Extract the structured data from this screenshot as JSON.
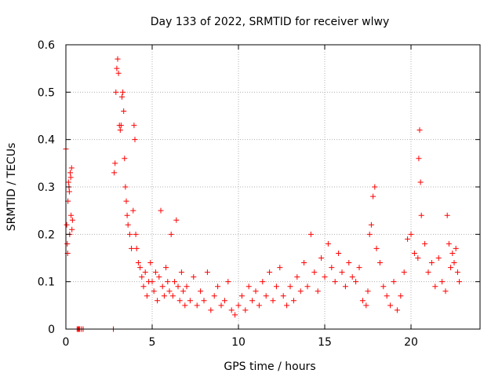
{
  "chart_data": {
    "type": "scatter",
    "title": "Day 133 of 2022, SRMTID for receiver wlwy",
    "xlabel": "GPS time / hours",
    "ylabel": "SRMTID / TECUs",
    "xlim": [
      0,
      24
    ],
    "ylim": [
      0,
      0.6
    ],
    "xticks": [
      "0",
      "5",
      "10",
      "15",
      "20"
    ],
    "yticks": [
      "0",
      "0.1",
      "0.2",
      "0.3",
      "0.4",
      "0.5",
      "0.6"
    ],
    "grid": true,
    "marker": "+",
    "series": [
      {
        "name": "SRMTID",
        "color": "#ff0000",
        "points": [
          [
            0.0,
            0.38
          ],
          [
            0.05,
            0.22
          ],
          [
            0.08,
            0.18
          ],
          [
            0.1,
            0.16
          ],
          [
            0.12,
            0.27
          ],
          [
            0.15,
            0.31
          ],
          [
            0.18,
            0.3
          ],
          [
            0.2,
            0.29
          ],
          [
            0.22,
            0.2
          ],
          [
            0.25,
            0.33
          ],
          [
            0.28,
            0.32
          ],
          [
            0.3,
            0.24
          ],
          [
            0.33,
            0.34
          ],
          [
            0.35,
            0.21
          ],
          [
            0.38,
            0.23
          ],
          [
            0.65,
            0.0
          ],
          [
            0.7,
            0.0
          ],
          [
            0.75,
            0.0
          ],
          [
            0.8,
            0.0
          ],
          [
            0.9,
            0.0
          ],
          [
            1.0,
            0.0
          ],
          [
            2.75,
            0.0
          ],
          [
            2.8,
            0.33
          ],
          [
            2.85,
            0.35
          ],
          [
            2.9,
            0.5
          ],
          [
            2.95,
            0.55
          ],
          [
            3.0,
            0.57
          ],
          [
            3.05,
            0.54
          ],
          [
            3.1,
            0.43
          ],
          [
            3.15,
            0.42
          ],
          [
            3.2,
            0.43
          ],
          [
            3.25,
            0.49
          ],
          [
            3.3,
            0.5
          ],
          [
            3.35,
            0.46
          ],
          [
            3.4,
            0.36
          ],
          [
            3.45,
            0.3
          ],
          [
            3.5,
            0.27
          ],
          [
            3.55,
            0.24
          ],
          [
            3.6,
            0.22
          ],
          [
            3.7,
            0.2
          ],
          [
            3.8,
            0.17
          ],
          [
            3.9,
            0.25
          ],
          [
            3.95,
            0.43
          ],
          [
            4.0,
            0.4
          ],
          [
            4.05,
            0.2
          ],
          [
            4.1,
            0.17
          ],
          [
            4.2,
            0.14
          ],
          [
            4.3,
            0.13
          ],
          [
            4.4,
            0.11
          ],
          [
            4.5,
            0.09
          ],
          [
            4.6,
            0.12
          ],
          [
            4.7,
            0.07
          ],
          [
            4.8,
            0.1
          ],
          [
            4.9,
            0.14
          ],
          [
            5.0,
            0.1
          ],
          [
            5.1,
            0.08
          ],
          [
            5.2,
            0.12
          ],
          [
            5.3,
            0.06
          ],
          [
            5.4,
            0.11
          ],
          [
            5.5,
            0.25
          ],
          [
            5.6,
            0.09
          ],
          [
            5.7,
            0.07
          ],
          [
            5.8,
            0.13
          ],
          [
            5.9,
            0.1
          ],
          [
            6.0,
            0.08
          ],
          [
            6.1,
            0.2
          ],
          [
            6.2,
            0.07
          ],
          [
            6.3,
            0.1
          ],
          [
            6.4,
            0.23
          ],
          [
            6.5,
            0.09
          ],
          [
            6.6,
            0.06
          ],
          [
            6.7,
            0.12
          ],
          [
            6.8,
            0.08
          ],
          [
            6.9,
            0.05
          ],
          [
            7.0,
            0.09
          ],
          [
            7.2,
            0.06
          ],
          [
            7.4,
            0.11
          ],
          [
            7.6,
            0.05
          ],
          [
            7.8,
            0.08
          ],
          [
            8.0,
            0.06
          ],
          [
            8.2,
            0.12
          ],
          [
            8.4,
            0.04
          ],
          [
            8.6,
            0.07
          ],
          [
            8.8,
            0.09
          ],
          [
            9.0,
            0.05
          ],
          [
            9.2,
            0.06
          ],
          [
            9.4,
            0.1
          ],
          [
            9.6,
            0.04
          ],
          [
            9.8,
            0.03
          ],
          [
            10.0,
            0.05
          ],
          [
            10.2,
            0.07
          ],
          [
            10.4,
            0.04
          ],
          [
            10.6,
            0.09
          ],
          [
            10.8,
            0.06
          ],
          [
            11.0,
            0.08
          ],
          [
            11.2,
            0.05
          ],
          [
            11.4,
            0.1
          ],
          [
            11.6,
            0.07
          ],
          [
            11.8,
            0.12
          ],
          [
            12.0,
            0.06
          ],
          [
            12.2,
            0.09
          ],
          [
            12.4,
            0.13
          ],
          [
            12.6,
            0.07
          ],
          [
            12.8,
            0.05
          ],
          [
            13.0,
            0.09
          ],
          [
            13.2,
            0.06
          ],
          [
            13.4,
            0.11
          ],
          [
            13.6,
            0.08
          ],
          [
            13.8,
            0.14
          ],
          [
            14.0,
            0.09
          ],
          [
            14.2,
            0.2
          ],
          [
            14.4,
            0.12
          ],
          [
            14.6,
            0.08
          ],
          [
            14.8,
            0.15
          ],
          [
            15.0,
            0.11
          ],
          [
            15.2,
            0.18
          ],
          [
            15.4,
            0.13
          ],
          [
            15.6,
            0.1
          ],
          [
            15.8,
            0.16
          ],
          [
            16.0,
            0.12
          ],
          [
            16.2,
            0.09
          ],
          [
            16.4,
            0.14
          ],
          [
            16.6,
            0.11
          ],
          [
            16.8,
            0.1
          ],
          [
            17.0,
            0.13
          ],
          [
            17.2,
            0.06
          ],
          [
            17.4,
            0.05
          ],
          [
            17.5,
            0.08
          ],
          [
            17.6,
            0.2
          ],
          [
            17.7,
            0.22
          ],
          [
            17.8,
            0.28
          ],
          [
            17.9,
            0.3
          ],
          [
            18.0,
            0.17
          ],
          [
            18.2,
            0.14
          ],
          [
            18.4,
            0.09
          ],
          [
            18.6,
            0.07
          ],
          [
            18.8,
            0.05
          ],
          [
            19.0,
            0.1
          ],
          [
            19.2,
            0.04
          ],
          [
            19.4,
            0.07
          ],
          [
            19.6,
            0.12
          ],
          [
            19.8,
            0.19
          ],
          [
            20.0,
            0.2
          ],
          [
            20.2,
            0.16
          ],
          [
            20.4,
            0.15
          ],
          [
            20.45,
            0.36
          ],
          [
            20.5,
            0.42
          ],
          [
            20.55,
            0.31
          ],
          [
            20.6,
            0.24
          ],
          [
            20.8,
            0.18
          ],
          [
            21.0,
            0.12
          ],
          [
            21.2,
            0.14
          ],
          [
            21.4,
            0.09
          ],
          [
            21.6,
            0.15
          ],
          [
            21.8,
            0.1
          ],
          [
            22.0,
            0.08
          ],
          [
            22.1,
            0.24
          ],
          [
            22.2,
            0.18
          ],
          [
            22.3,
            0.13
          ],
          [
            22.4,
            0.16
          ],
          [
            22.5,
            0.14
          ],
          [
            22.6,
            0.17
          ],
          [
            22.7,
            0.12
          ],
          [
            22.8,
            0.1
          ]
        ]
      }
    ]
  }
}
